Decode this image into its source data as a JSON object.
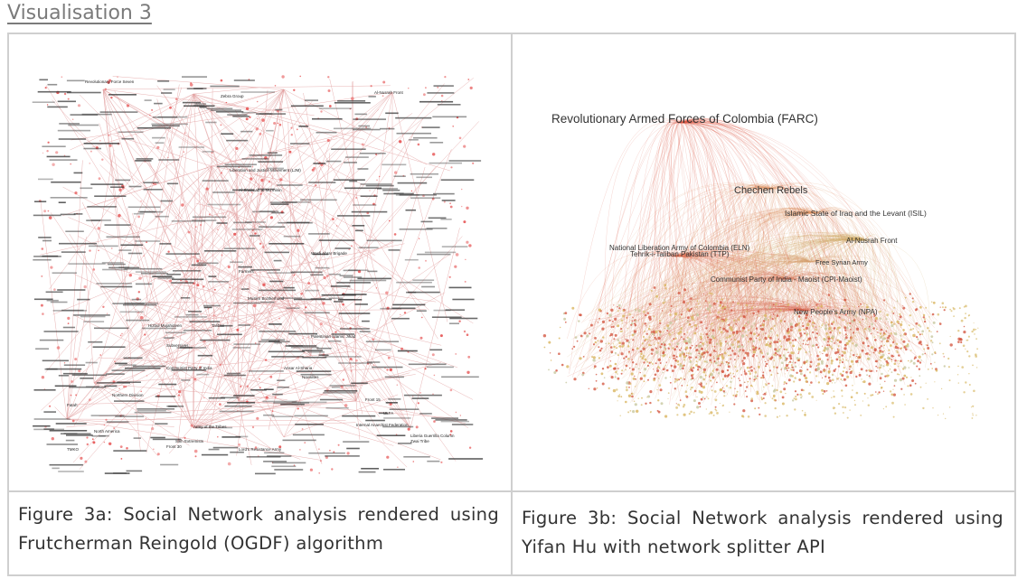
{
  "section": {
    "title": "Visualisation 3"
  },
  "figure_a": {
    "caption": "Figure 3a: Social Network analysis rendered using Frutcherman Reingold (OGDF) algorithm",
    "labels": [
      "Revolutionary Force Seven",
      "Zebra Group",
      "Al-Nusrah Front",
      "Liberation and Justice Movement (LJM)",
      "Al-Shabaab al-Mu'minin",
      "Wasfi Ahrar Brigade",
      "Farmers",
      "Muslim Brotherhood",
      "Hizbul Mujahideen",
      "Palestinian Islamic Jihad",
      "Ansar Al-Sharia",
      "Naxalites",
      "Taliban",
      "Subversives",
      "Communist Party of India",
      "Northern Division",
      "Army of the Tribes",
      "Fatah",
      "Sikh Extremists",
      "Lord's Resistance Army",
      "Liberia Guerrilla Column",
      "Zwai Tribe",
      "TMKO",
      "North America",
      "Internal Anarchist Federation",
      "Front 30",
      "Front 15",
      "ULFA"
    ]
  },
  "figure_b": {
    "caption": "Figure 3b: Social Network analysis rendered using Yifan Hu with network splitter API",
    "labels": {
      "farc": "Revolutionary Armed Forces of Colombia (FARC)",
      "chechen": "Chechen Rebels",
      "isil": "Islamic State of Iraq and the Levant (ISIL)",
      "nusra": "Al-Nusrah Front",
      "eln": "National Liberation Army of Colombia (ELN)",
      "ttp": "Tehrik-i-Taliban Pakistan (TTP)",
      "fsa": "Free Syrian Army",
      "cpi": "Communist Party of India - Maoist (CPI-Maoist)",
      "npa": "New People's Army (NPA)"
    }
  }
}
